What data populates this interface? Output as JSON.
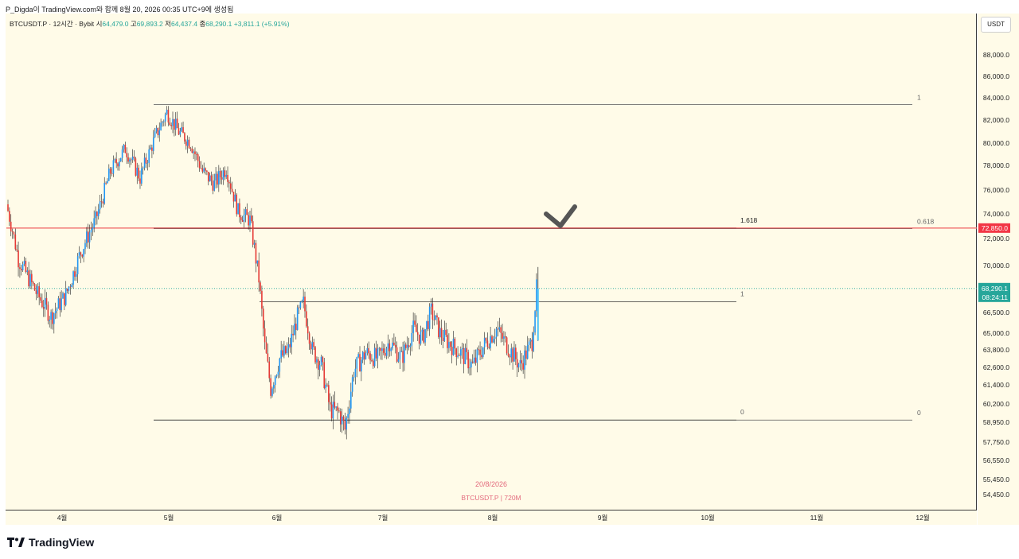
{
  "header": {
    "caption": "P_Digda이 TradingView.com와 함께 8월 20, 2026 00:35 UTC+9에 생성됨"
  },
  "legend": {
    "symbol": "BTCUSDT.P · 12시간 · Bybit",
    "open_label": "시",
    "open": "64,479.0",
    "high_label": "고",
    "high": "69,893.2",
    "low_label": "저",
    "low": "64,437.4",
    "close_label": "종",
    "close": "68,290.1",
    "change": "+3,811.1 (+5.91%)"
  },
  "currency": "USDT",
  "watermark": {
    "date": "20/8/2026",
    "symbol": "BTCUSDT.P",
    "interval": "720M"
  },
  "brand": {
    "name": "TradingView",
    "icon": "tradingview-logo-icon"
  },
  "colors": {
    "up": "#26a69a",
    "down": "#ef5350",
    "candle_up": "#2196f3",
    "candle_down": "#e53935",
    "red_line": "#f06a6a",
    "background": "#fffbe8",
    "price_tag": "#f23645",
    "last_tag": "#26a69a"
  },
  "chart_data": {
    "type": "candlestick",
    "y_ticks": [
      "88,000.0",
      "86,000.0",
      "84,000.0",
      "82,000.0",
      "80,000.0",
      "78,000.0",
      "76,000.0",
      "74,000.0",
      "72,000.0",
      "70,000.0",
      "66,500.0",
      "65,000.0",
      "63,800.0",
      "62,600.0",
      "61,400.0",
      "60,200.0",
      "58,950.0",
      "57,750.0",
      "56,550.0",
      "55,450.0",
      "54,450.0"
    ],
    "y_tick_values": [
      88000,
      86000,
      84000,
      82000,
      80000,
      78000,
      76000,
      74000,
      72000,
      70000,
      66500,
      65000,
      63800,
      62600,
      61400,
      60200,
      58950,
      57750,
      56550,
      55450,
      54450
    ],
    "x_ticks": [
      "4월",
      "5월",
      "6월",
      "7월",
      "8월",
      "9월",
      "10월",
      "11월",
      "12월"
    ],
    "series_path": [
      {
        "days": 0,
        "price": 74800
      },
      {
        "days": 4,
        "price": 70500
      },
      {
        "days": 10,
        "price": 68000
      },
      {
        "days": 15,
        "price": 66200
      },
      {
        "days": 20,
        "price": 67800
      },
      {
        "days": 25,
        "price": 71000
      },
      {
        "days": 30,
        "price": 73500
      },
      {
        "days": 35,
        "price": 77500
      },
      {
        "days": 40,
        "price": 79500
      },
      {
        "days": 45,
        "price": 77000
      },
      {
        "days": 50,
        "price": 80500
      },
      {
        "days": 54,
        "price": 82700
      },
      {
        "days": 58,
        "price": 81000
      },
      {
        "days": 62,
        "price": 80000
      },
      {
        "days": 66,
        "price": 77500
      },
      {
        "days": 70,
        "price": 76500
      },
      {
        "days": 74,
        "price": 77800
      },
      {
        "days": 78,
        "price": 74200
      },
      {
        "days": 82,
        "price": 73500
      },
      {
        "days": 85,
        "price": 69000
      },
      {
        "days": 87,
        "price": 64000
      },
      {
        "days": 89,
        "price": 61200
      },
      {
        "days": 92,
        "price": 63200
      },
      {
        "days": 95,
        "price": 63800
      },
      {
        "days": 98,
        "price": 66200
      },
      {
        "days": 100,
        "price": 67200
      },
      {
        "days": 103,
        "price": 63800
      },
      {
        "days": 106,
        "price": 62800
      },
      {
        "days": 109,
        "price": 59800
      },
      {
        "days": 112,
        "price": 59600
      },
      {
        "days": 114,
        "price": 58500
      },
      {
        "days": 117,
        "price": 62400
      },
      {
        "days": 121,
        "price": 63600
      },
      {
        "days": 125,
        "price": 63200
      },
      {
        "days": 129,
        "price": 64400
      },
      {
        "days": 133,
        "price": 63200
      },
      {
        "days": 137,
        "price": 65300
      },
      {
        "days": 140,
        "price": 64600
      },
      {
        "days": 143,
        "price": 66600
      },
      {
        "days": 146,
        "price": 65000
      },
      {
        "days": 149,
        "price": 64300
      },
      {
        "days": 153,
        "price": 63600
      },
      {
        "days": 157,
        "price": 62700
      },
      {
        "days": 161,
        "price": 64200
      },
      {
        "days": 165,
        "price": 65300
      },
      {
        "days": 169,
        "price": 64000
      },
      {
        "days": 173,
        "price": 62700
      },
      {
        "days": 177,
        "price": 64400
      },
      {
        "days": 178.5,
        "price": 68290
      }
    ],
    "fib_upper": {
      "levels": [
        {
          "label": "1",
          "price": 83400
        },
        {
          "label": "0.618",
          "price": 72800
        },
        {
          "label": "0",
          "price": 59100
        }
      ]
    },
    "fib_lower": {
      "levels": [
        {
          "label": "1.618",
          "price": 72850
        },
        {
          "label": "1",
          "price": 67300
        },
        {
          "label": "0",
          "price": 59100
        }
      ]
    },
    "horizontal_line": {
      "price": 72850,
      "label": "72,850.0"
    },
    "last_price": {
      "price": 68290,
      "label": "68,290.1",
      "countdown": "08:24:11"
    },
    "annotation": {
      "type": "checkmark",
      "icon": "checkmark-annotation-icon"
    }
  }
}
